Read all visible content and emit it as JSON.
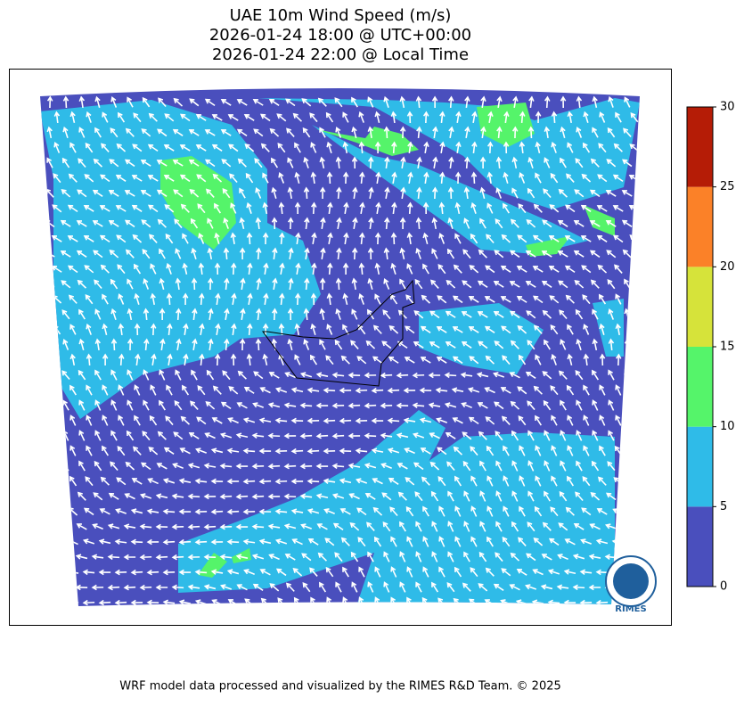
{
  "title": [
    "UAE 10m Wind Speed (m/s)",
    "2026-01-24 18:00 @ UTC+00:00",
    "2026-01-24 22:00 @ Local Time"
  ],
  "colorbar": {
    "ticks": [
      0,
      5,
      10,
      15,
      20,
      25,
      30
    ],
    "colors": [
      "#4a4fbd",
      "#2fbbe8",
      "#55f46a",
      "#d6e33a",
      "#fb8128",
      "#b51c06"
    ]
  },
  "logo": "RIMES",
  "credit": "WRF model data processed and visualized by the RIMES R&D Team. © 2025"
}
